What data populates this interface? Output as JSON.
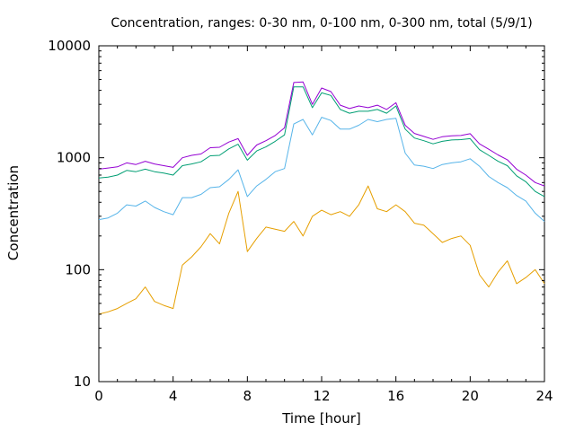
{
  "chart_data": {
    "type": "line",
    "title": "Concentration, ranges: 0-30 nm, 0-100 nm, 0-300 nm, total (5/9/1)",
    "xlabel": "Time [hour]",
    "ylabel": "Concentration",
    "xlim": [
      0,
      24
    ],
    "ylim": [
      10,
      10000
    ],
    "yscale": "log",
    "grid": false,
    "legend": "none",
    "xticks": [
      0,
      4,
      8,
      12,
      16,
      20,
      24
    ],
    "xtick_labels": [
      "0",
      "4",
      "8",
      "12",
      "16",
      "20",
      "24"
    ],
    "yticks": [
      10,
      100,
      1000,
      10000
    ],
    "ytick_labels": [
      "10",
      "100",
      "1000",
      "10000"
    ],
    "x": [
      0,
      0.5,
      1,
      1.5,
      2,
      2.5,
      3,
      3.5,
      4,
      4.5,
      5,
      5.5,
      6,
      6.5,
      7,
      7.5,
      8,
      8.5,
      9,
      9.5,
      10,
      10.5,
      11,
      11.5,
      12,
      12.5,
      13,
      13.5,
      14,
      14.5,
      15,
      15.5,
      16,
      16.5,
      17,
      17.5,
      18,
      18.5,
      19,
      19.5,
      20,
      20.5,
      21,
      21.5,
      22,
      22.5,
      23,
      23.5,
      24
    ],
    "series": [
      {
        "color": "#E69F00",
        "values": [
          40,
          42,
          45,
          50,
          55,
          70,
          52,
          48,
          45,
          110,
          130,
          160,
          210,
          170,
          320,
          500,
          145,
          190,
          240,
          230,
          220,
          270,
          200,
          300,
          340,
          310,
          330,
          300,
          380,
          560,
          350,
          330,
          380,
          330,
          260,
          250,
          210,
          175,
          190,
          200,
          165,
          90,
          70,
          95,
          120,
          75,
          85,
          100,
          75
        ]
      },
      {
        "color": "#56B4E9",
        "values": [
          280,
          290,
          320,
          380,
          370,
          410,
          360,
          330,
          310,
          440,
          440,
          470,
          540,
          550,
          640,
          780,
          450,
          560,
          640,
          750,
          800,
          2000,
          2200,
          1600,
          2300,
          2150,
          1800,
          1800,
          1950,
          2200,
          2100,
          2200,
          2250,
          1100,
          860,
          840,
          800,
          870,
          900,
          920,
          980,
          840,
          680,
          600,
          540,
          460,
          410,
          320,
          270
        ]
      },
      {
        "color": "#009E73",
        "values": [
          660,
          670,
          700,
          770,
          750,
          790,
          750,
          730,
          700,
          850,
          880,
          920,
          1040,
          1050,
          1200,
          1320,
          950,
          1150,
          1250,
          1400,
          1600,
          4300,
          4300,
          2800,
          3800,
          3600,
          2700,
          2500,
          2600,
          2600,
          2700,
          2500,
          2900,
          1800,
          1500,
          1420,
          1330,
          1400,
          1440,
          1450,
          1480,
          1180,
          1050,
          930,
          850,
          690,
          610,
          500,
          450
        ]
      },
      {
        "color": "#9400D3",
        "values": [
          790,
          810,
          830,
          900,
          870,
          930,
          880,
          850,
          820,
          1000,
          1050,
          1080,
          1230,
          1240,
          1380,
          1480,
          1050,
          1300,
          1420,
          1580,
          1850,
          4700,
          4750,
          3000,
          4200,
          3900,
          2950,
          2750,
          2900,
          2800,
          2950,
          2700,
          3100,
          1950,
          1650,
          1550,
          1460,
          1540,
          1570,
          1580,
          1640,
          1330,
          1190,
          1060,
          960,
          790,
          700,
          600,
          560
        ]
      }
    ]
  }
}
